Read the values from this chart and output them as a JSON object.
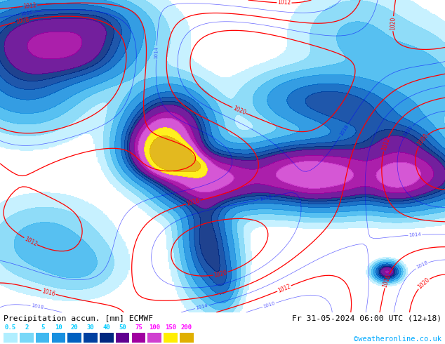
{
  "title_left": "Precipitation accum. [mm] ECMWF",
  "title_right": "Fr 31-05-2024 06:00 UTC (12+18)",
  "credit": "©weatheronline.co.uk",
  "bg_color": "#c8e6a0",
  "credit_color": "#00aaff",
  "legend_labels": [
    "0.5",
    "2",
    "5",
    "10",
    "20",
    "30",
    "40",
    "50",
    "75",
    "100",
    "150",
    "200"
  ],
  "legend_colors": [
    "#b0eeff",
    "#78d8f8",
    "#40b8f0",
    "#1890e0",
    "#0060c0",
    "#0040a0",
    "#002880",
    "#600090",
    "#a000a0",
    "#d040d0",
    "#ffee00",
    "#e0b000"
  ],
  "legend_label_colors_cyan": [
    0,
    1,
    2,
    3,
    4,
    5,
    6,
    7
  ],
  "legend_label_colors_magenta": [
    8,
    9,
    10,
    11
  ],
  "precip_colors": [
    "#c0f0ff",
    "#80d8f8",
    "#40b8f0",
    "#1890e0",
    "#0060c0",
    "#0040a0",
    "#002880",
    "#600090",
    "#a000a0",
    "#d040d0",
    "#ffee00",
    "#e0b000"
  ],
  "boundaries": [
    0.5,
    2,
    5,
    10,
    20,
    30,
    40,
    50,
    75,
    100,
    150,
    200,
    500
  ]
}
